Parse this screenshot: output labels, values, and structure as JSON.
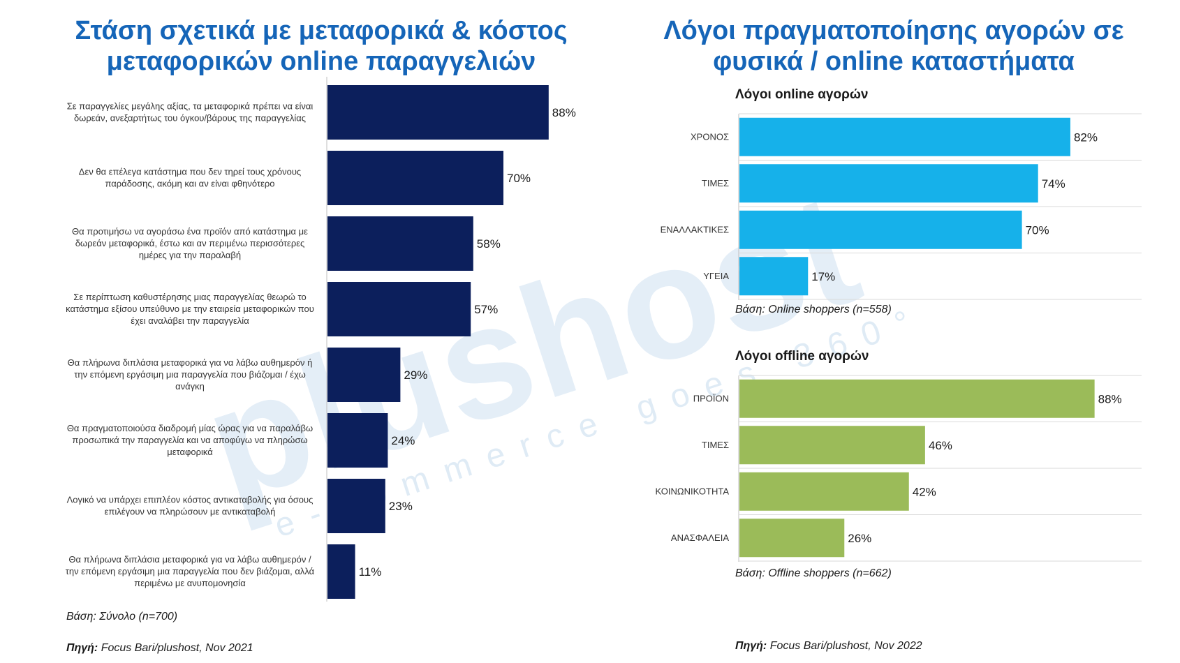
{
  "colors": {
    "title": "#1565b8",
    "left_bar": "#0c1f5c",
    "online_bar": "#16b1ea",
    "offline_bar": "#9bbb59",
    "watermark": "#dce9f5"
  },
  "watermark": {
    "brand": "plushost",
    "tagline": "e-commerce goes 360°"
  },
  "left_panel": {
    "title_line1": "Στάση σχετικά με μεταφορικά & κόστος",
    "title_line2": "μεταφορικών online παραγγελιών",
    "base_note": "Βάση: Σύνολο (n=700)",
    "source_label": "Πηγή:",
    "source_text": "Focus Bari/plushost, Nov 2021"
  },
  "right_panel": {
    "title_line1": "Λόγοι πραγματοποίησης αγορών σε",
    "title_line2": "φυσικά / online καταστήματα",
    "online_subtitle": "Λόγοι online αγορών",
    "online_base": "Βάση: Online shoppers (n=558)",
    "offline_subtitle": "Λόγοι offline αγορών",
    "offline_base": "Βάση: Offline shoppers (n=662)",
    "source_label": "Πηγή:",
    "source_text": "Focus Bari/plushost, Nov 2022"
  },
  "chart_data": [
    {
      "type": "bar",
      "orientation": "horizontal",
      "title": "Στάση σχετικά με μεταφορικά & κόστος μεταφορικών online παραγγελιών",
      "categories": [
        [
          "Σε παραγγελίες μεγάλης αξίας, τα μεταφορικά πρέπει να είναι",
          "δωρεάν, ανεξαρτήτως του όγκου/βάρους της παραγγελίας"
        ],
        [
          "Δεν θα επέλεγα κατάστημα που δεν τηρεί τους χρόνους",
          "παράδοσης, ακόμη και αν είναι φθηνότερο"
        ],
        [
          "Θα προτιμήσω να αγοράσω ένα προϊόν από κατάστημα με",
          "δωρεάν μεταφορικά, έστω και αν περιμένω περισσότερες",
          "ημέρες για την παραλαβή"
        ],
        [
          "Σε περίπτωση καθυστέρησης μιας παραγγελίας θεωρώ το",
          "κατάστημα εξίσου υπεύθυνο με την εταιρεία μεταφορικών που",
          "έχει αναλάβει την παραγγελία"
        ],
        [
          "Θα πλήρωνα διπλάσια μεταφορικά για να λάβω αυθημερόν ή",
          "την επόμενη εργάσιμη μια παραγγελία που βιάζομαι / έχω",
          "ανάγκη"
        ],
        [
          "Θα πραγματοποιούσα διαδρομή μίας ώρας για να παραλάβω",
          "προσωπικά την παραγγελία και να αποφύγω να πληρώσω",
          "μεταφορικά"
        ],
        [
          "Λογικό να υπάρχει επιπλέον κόστος αντικαταβολής για όσους",
          "επιλέγουν να πληρώσουν με αντικαταβολή"
        ],
        [
          "Θα πλήρωνα διπλάσια μεταφορικά για να λάβω αυθημερόν /",
          "την επόμενη εργάσιμη μια παραγγελία που δεν βιάζομαι, αλλά",
          "περιμένω με ανυπομονησία"
        ]
      ],
      "values": [
        88,
        70,
        58,
        57,
        29,
        24,
        23,
        11
      ],
      "value_labels": [
        "88%",
        "70%",
        "58%",
        "57%",
        "29%",
        "24%",
        "23%",
        "11%"
      ],
      "xlim": [
        0,
        100
      ],
      "grid": false,
      "legend": "none"
    },
    {
      "type": "bar",
      "orientation": "horizontal",
      "title": "Λόγοι online αγορών",
      "categories": [
        "ΧΡΟΝΟΣ",
        "ΤΙΜΕΣ",
        "ΕΝΑΛΛΑΚΤΙΚΕΣ",
        "ΥΓΕΙΑ"
      ],
      "values": [
        82,
        74,
        70,
        17
      ],
      "value_labels": [
        "82%",
        "74%",
        "70%",
        "17%"
      ],
      "xlim": [
        0,
        100
      ],
      "grid": true,
      "legend": "none"
    },
    {
      "type": "bar",
      "orientation": "horizontal",
      "title": "Λόγοι offline αγορών",
      "categories": [
        "ΠΡΟΪΟΝ",
        "ΤΙΜΕΣ",
        "ΚΟΙΝΩΝΙΚΟΤΗΤΑ",
        "ΑΝΑΣΦΑΛΕΙΑ"
      ],
      "values": [
        88,
        46,
        42,
        26
      ],
      "value_labels": [
        "88%",
        "46%",
        "42%",
        "26%"
      ],
      "xlim": [
        0,
        100
      ],
      "grid": true,
      "legend": "none"
    }
  ]
}
